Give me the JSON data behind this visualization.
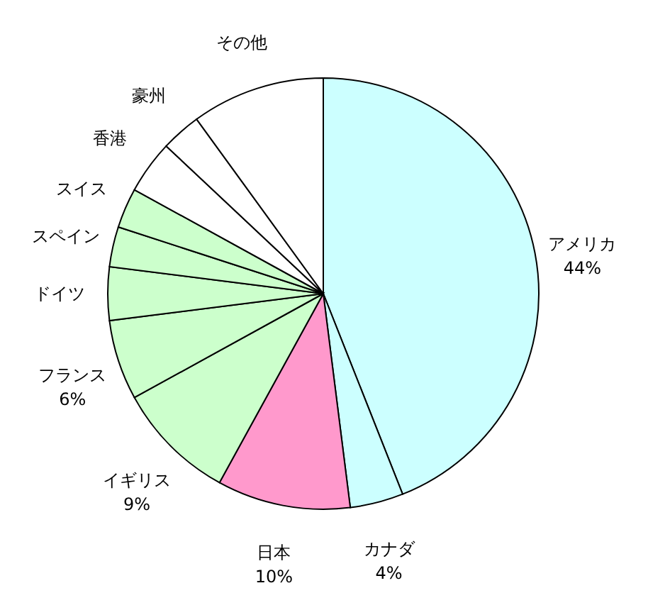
{
  "chart_data": {
    "type": "pie",
    "categories": [
      "アメリカ",
      "カナダ",
      "日本",
      "イギリス",
      "フランス",
      "ドイツ",
      "スペイン",
      "スイス",
      "香港",
      "豪州",
      "その他"
    ],
    "values": [
      44,
      4,
      10,
      9,
      6,
      4,
      3,
      3,
      4,
      3,
      10
    ],
    "colors": [
      "#ccffff",
      "#ccffff",
      "#ff99cc",
      "#ccffcc",
      "#ccffcc",
      "#ccffcc",
      "#ccffcc",
      "#ccffcc",
      "#ffffff",
      "#ffffff",
      "#ffffff"
    ],
    "value_labels": [
      "44%",
      "4%",
      "10%",
      "9%",
      "6%",
      null,
      null,
      null,
      null,
      null,
      null
    ]
  }
}
